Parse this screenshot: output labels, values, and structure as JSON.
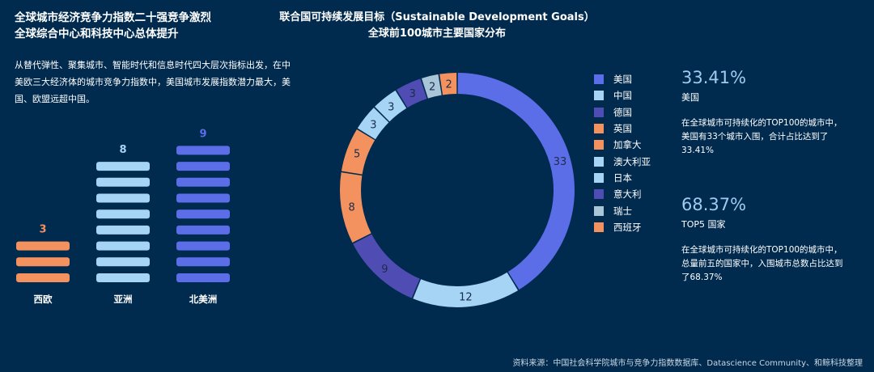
{
  "left": {
    "title_line1": "全球城市经济竞争力指数二十强竞争激烈",
    "title_line2": "全球综合中心和科技中心总体提升",
    "description": "从替代弹性、聚集城市、智能时代和信息时代四大层次指标出发，在中美欧三大经济体的城市竞争力指数中，美国城市发展指数潜力最大，美国、欧盟远超中国。"
  },
  "center": {
    "title_line1": "联合国可持续发展目标（Sustainable Development Goals）",
    "title_line2": "全球前100城市主要国家分布"
  },
  "stats": [
    {
      "value": "33.41%",
      "label": "美国",
      "description": "在全球城市可持续化的TOP100的城市中，美国有33个城市入围，合计占比达到了33.41%"
    },
    {
      "value": "68.37%",
      "label": "TOP5 国家",
      "description": "在全球城市可持续化的TOP100的城市中，总量前五的国家中，入围城市总数占比达到了68.37%"
    }
  ],
  "source": "资料来源：中国社会科学院城市与竞争力指数数据库、Datascience Community、和鲸科技整理",
  "chart_data": [
    {
      "type": "bar",
      "title": "",
      "categories": [
        "西欧",
        "亚洲",
        "北美洲"
      ],
      "values": [
        3,
        8,
        9
      ],
      "colors": [
        "#f4925f",
        "#a5d4f5",
        "#5b6ee8"
      ],
      "ylim": [
        0,
        9
      ]
    },
    {
      "type": "pie",
      "subtype": "donut",
      "title": "全球前100城市主要国家分布",
      "categories": [
        "美国",
        "中国",
        "德国",
        "英国",
        "加拿大",
        "澳大利亚",
        "日本",
        "意大利",
        "瑞士",
        "西班牙"
      ],
      "slices": [
        {
          "name": "美国",
          "value": 33,
          "color": "#5b6ee8"
        },
        {
          "name": "中国",
          "value": 12,
          "color": "#a5d4f5"
        },
        {
          "name": "德国",
          "value": 9,
          "color": "#4f4db4"
        },
        {
          "name": "英国",
          "value": 8,
          "color": "#f4925f"
        },
        {
          "name": "加拿大",
          "value": 5,
          "color": "#f4925f"
        },
        {
          "name": "澳大利亚",
          "value": 3,
          "color": "#a5d4f5"
        },
        {
          "name": "日本",
          "value": 3,
          "color": "#a5d4f5"
        },
        {
          "name": "意大利",
          "value": 3,
          "color": "#4f4db4"
        },
        {
          "name": "瑞士",
          "value": 2,
          "color": "#a8c6d8"
        },
        {
          "name": "西班牙",
          "value": 2,
          "color": "#f4925f"
        }
      ]
    }
  ]
}
